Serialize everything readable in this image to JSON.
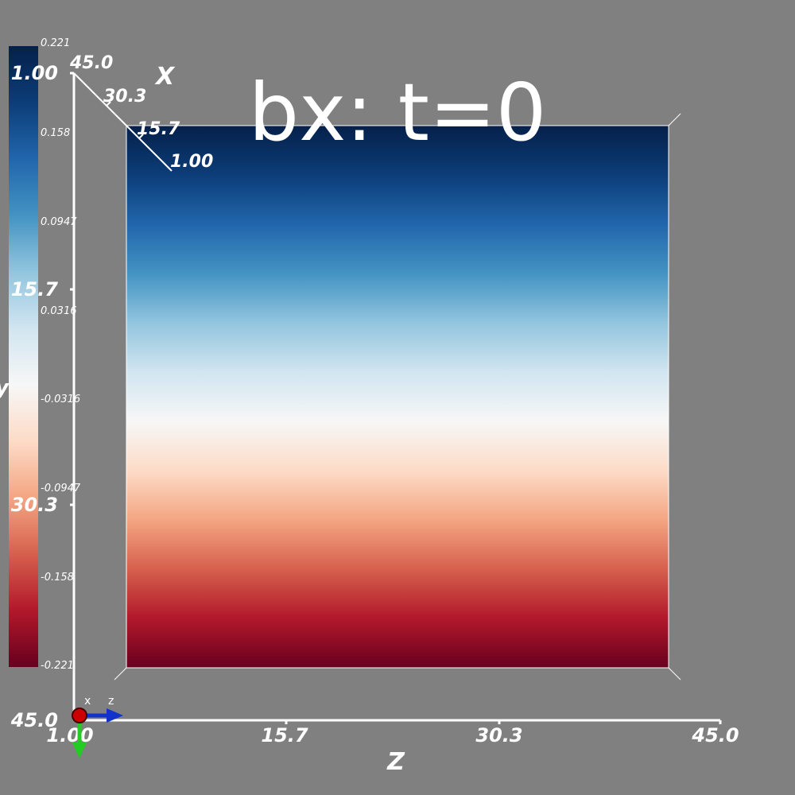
{
  "title": "bx: t=0",
  "colormap": {
    "stops": [
      "#05204a",
      "#0c3d78",
      "#2166ac",
      "#4393c3",
      "#92c5de",
      "#d1e5f0",
      "#f7f7f7",
      "#fddbc7",
      "#f4a582",
      "#d6604d",
      "#b2182b",
      "#67001f"
    ]
  },
  "colorbar": {
    "ticks": [
      "0.221",
      "0.158",
      "0.0947",
      "0.0316",
      "-0.0316",
      "-0.0947",
      "-0.158",
      "-0.221"
    ],
    "variable_label": "y"
  },
  "axes": {
    "y_axis": {
      "ticks": [
        "1.00",
        "15.7",
        "30.3",
        "45.0"
      ]
    },
    "x_axis": {
      "name": "X",
      "ticks": [
        "45.0",
        "30.3",
        "15.7",
        "1.00"
      ]
    },
    "z_axis": {
      "name": "Z",
      "ticks": [
        "1.00",
        "15.7",
        "30.3",
        "45.0"
      ]
    }
  },
  "orientation_widget": {
    "x_label": "x",
    "z_label": "z",
    "colors": {
      "x": "#cc0000",
      "y": "#22cc22",
      "z": "#1133cc"
    }
  }
}
